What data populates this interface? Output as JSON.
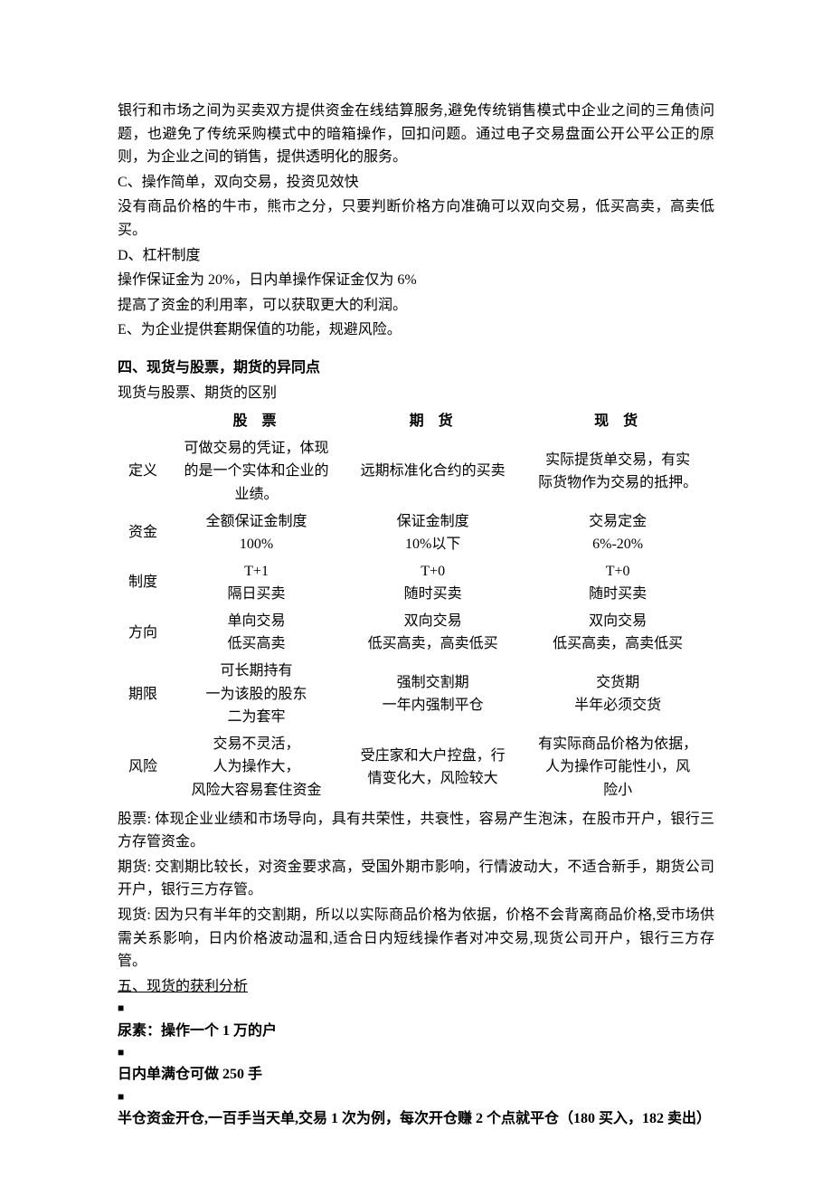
{
  "paragraphs": {
    "p1": "银行和市场之间为买卖双方提供资金在线结算服务,避免传统销售模式中企业之间的三角债问题，也避免了传统采购模式中的暗箱操作，回扣问题。通过电子交易盘面公开公平公正的原则，为企业之间的销售，提供透明化的服务。",
    "c_title": "C、操作简单，双向交易，投资见效快",
    "c_body": "没有商品价格的牛市，熊市之分，只要判断价格方向准确可以双向交易，低买高卖，高卖低买。",
    "d_title": "D、杠杆制度",
    "d_body1": "操作保证金为 20%，日内单操作保证金仅为 6%",
    "d_body2": "提高了资金的利用率，可以获取更大的利润。",
    "e_title": "E、为企业提供套期保值的功能，规避风险。"
  },
  "section4": {
    "title": "四、现货与股票，期货的异同点",
    "subtitle": "现货与股票、期货的区别",
    "table": {
      "headers": [
        "股票",
        "期货",
        "现货"
      ],
      "rows": [
        {
          "label": "定义",
          "c1": [
            "可做交易的凭证，体现",
            "的是一个实体和企业的",
            "业绩。"
          ],
          "c2": [
            "远期标准化合约的买卖"
          ],
          "c3": [
            "实际提货单交易，有实",
            "际货物作为交易的抵押。"
          ]
        },
        {
          "label": "资金",
          "c1": [
            "全额保证金制度",
            "100%"
          ],
          "c2": [
            "保证金制度",
            "10%以下"
          ],
          "c3": [
            "交易定金",
            "6%-20%"
          ]
        },
        {
          "label": "制度",
          "c1": [
            "T+1",
            "隔日买卖"
          ],
          "c2": [
            "T+0",
            "随时买卖"
          ],
          "c3": [
            "T+0",
            "随时买卖"
          ]
        },
        {
          "label": "方向",
          "c1": [
            "单向交易",
            "低买高卖"
          ],
          "c2": [
            "双向交易",
            "低买高卖，高卖低买"
          ],
          "c3": [
            "双向交易",
            "低买高卖，高卖低买"
          ]
        },
        {
          "label": "期限",
          "c1": [
            "可长期持有",
            "一为该股的股东",
            "二为套牢"
          ],
          "c2": [
            "强制交割期",
            "一年内强制平仓"
          ],
          "c3": [
            "交货期",
            "半年必须交货"
          ]
        },
        {
          "label": "风险",
          "c1": [
            "交易不灵活，",
            "人为操作大，",
            "风险大容易套住资金"
          ],
          "c2": [
            "受庄家和大户控盘，行",
            "情变化大，风险较大"
          ],
          "c3": [
            "有实际商品价格为依据，",
            "人为操作可能性小，风",
            "险小"
          ]
        }
      ]
    },
    "after1": "股票: 体现企业业绩和市场导向，具有共荣性，共衰性，容易产生泡沫，在股市开户，银行三方存管资金。",
    "after2": "期货: 交割期比较长，对资金要求高，受国外期市影响，行情波动大，不适合新手，期货公司开户，银行三方存管。",
    "after3": "现货: 因为只有半年的交割期，所以以实际商品价格为依据，价格不会背离商品价格,受市场供需关系影响，日内价格波动温和,适合日内短线操作者对冲交易,现货公司开户，银行三方存管。"
  },
  "section5": {
    "title": "五、现货的获利分析",
    "lines": [
      "尿素：操作一个 1 万的户",
      "日内单满仓可做 250 手",
      "半仓资金开仓,一百手当天单,交易 1 次为例，每次开仓赚 2 个点就平仓（180 买入，182 卖出）"
    ]
  },
  "colors": {
    "text": "#000000",
    "background": "#ffffff"
  },
  "fonts": {
    "body_pt": 12
  }
}
